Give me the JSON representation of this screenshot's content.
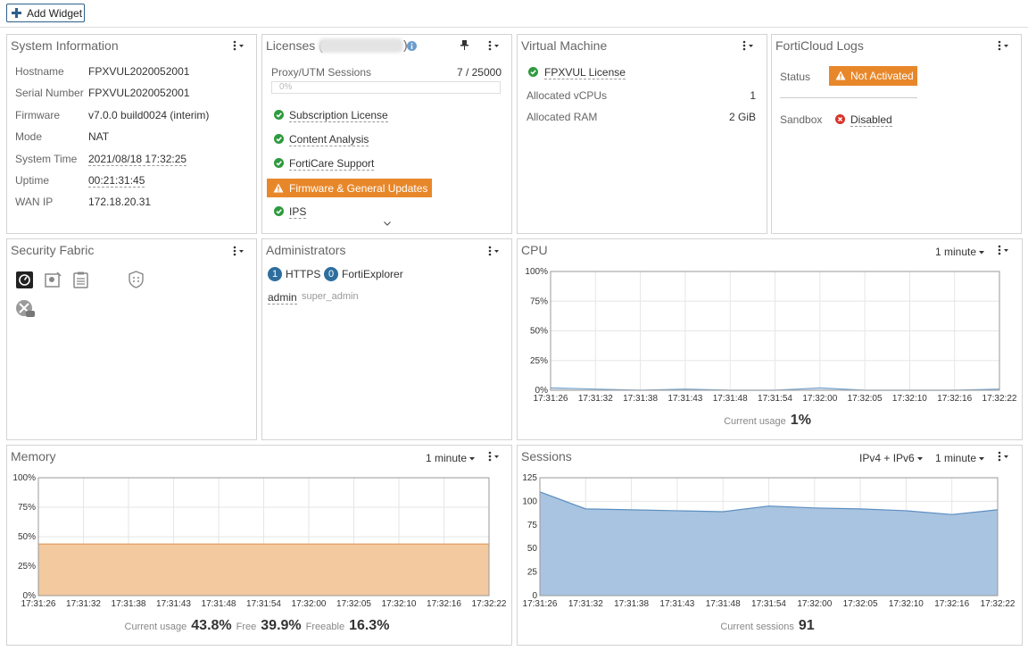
{
  "toolbar": {
    "add_widget": "Add Widget"
  },
  "system_information": {
    "title": "System Information",
    "rows": [
      {
        "label": "Hostname",
        "value": "FPXVUL2020052001"
      },
      {
        "label": "Serial Number",
        "value": "FPXVUL2020052001"
      },
      {
        "label": "Firmware",
        "value": "v7.0.0 build0024 (interim)"
      },
      {
        "label": "Mode",
        "value": "NAT"
      },
      {
        "label": "System Time",
        "value": "2021/08/18 17:32:25"
      },
      {
        "label": "Uptime",
        "value": "00:21:31:45"
      },
      {
        "label": "WAN IP",
        "value": "172.18.20.31"
      }
    ]
  },
  "licenses": {
    "title": "Licenses (",
    "title_end": ")",
    "sessions_label": "Proxy/UTM Sessions",
    "sessions_value": "7 / 25000",
    "sessions_bar": "0%",
    "items": [
      {
        "label": "Subscription License",
        "status": "ok"
      },
      {
        "label": "Content Analysis",
        "status": "ok"
      },
      {
        "label": "FortiCare Support",
        "status": "ok"
      },
      {
        "label": "Firmware & General Updates",
        "status": "warning"
      },
      {
        "label": "IPS",
        "status": "ok"
      }
    ]
  },
  "virtual_machine": {
    "title": "Virtual Machine",
    "license": "FPXVUL License",
    "rows": [
      {
        "label": "Allocated vCPUs",
        "value": "1"
      },
      {
        "label": "Allocated RAM",
        "value": "2 GiB"
      }
    ]
  },
  "forticloud_logs": {
    "title": "FortiCloud Logs",
    "status_label": "Status",
    "status": "Not Activated",
    "sandbox_label": "Sandbox",
    "sandbox": "Disabled"
  },
  "security_fabric": {
    "title": "Security Fabric"
  },
  "administrators": {
    "title": "Administrators",
    "sessions": [
      {
        "count": 1,
        "name": "HTTPS"
      },
      {
        "count": 0,
        "name": "FortiExplorer"
      }
    ],
    "user": "admin",
    "role": "super_admin"
  },
  "chart_data": [
    {
      "type": "area",
      "title": "CPU",
      "controls": [
        "1 minute"
      ],
      "color": "#7aa6cf",
      "fill": "#dde8f3",
      "categories": [
        "17:31:26",
        "17:31:32",
        "17:31:38",
        "17:31:43",
        "17:31:48",
        "17:31:54",
        "17:32:00",
        "17:32:05",
        "17:32:10",
        "17:32:16",
        "17:32:22"
      ],
      "values": [
        2,
        1,
        0,
        1,
        0,
        0,
        2,
        0,
        0,
        0,
        1
      ],
      "ylim": [
        0,
        100
      ],
      "yticks": [
        {
          "value": 0,
          "label": "0%"
        },
        {
          "value": 25,
          "label": "25%"
        },
        {
          "value": 50,
          "label": "50%"
        },
        {
          "value": 75,
          "label": "75%"
        },
        {
          "value": 100,
          "label": "100%"
        }
      ],
      "grid": true,
      "summary": [
        {
          "label": "Current usage",
          "value": "1%"
        }
      ]
    },
    {
      "type": "area",
      "title": "Memory",
      "controls": [
        "1 minute"
      ],
      "color": "#e0975a",
      "fill": "#f3c9a0",
      "categories": [
        "17:31:26",
        "17:31:32",
        "17:31:38",
        "17:31:43",
        "17:31:48",
        "17:31:54",
        "17:32:00",
        "17:32:05",
        "17:32:10",
        "17:32:16",
        "17:32:22"
      ],
      "values": [
        43.8,
        43.8,
        43.8,
        43.8,
        43.8,
        43.8,
        43.8,
        43.8,
        43.8,
        43.8,
        43.8
      ],
      "ylim": [
        0,
        100
      ],
      "yticks": [
        {
          "value": 0,
          "label": "0%"
        },
        {
          "value": 25,
          "label": "25%"
        },
        {
          "value": 50,
          "label": "50%"
        },
        {
          "value": 75,
          "label": "75%"
        },
        {
          "value": 100,
          "label": "100%"
        }
      ],
      "grid": true,
      "summary": [
        {
          "label": "Current usage",
          "value": "43.8%"
        },
        {
          "label": "Free",
          "value": "39.9%"
        },
        {
          "label": "Freeable",
          "value": "16.3%"
        }
      ]
    },
    {
      "type": "area",
      "title": "Sessions",
      "controls": [
        "IPv4 + IPv6",
        "1 minute"
      ],
      "color": "#5b8ec2",
      "fill": "#a9c4e0",
      "categories": [
        "17:31:26",
        "17:31:32",
        "17:31:38",
        "17:31:43",
        "17:31:48",
        "17:31:54",
        "17:32:00",
        "17:32:05",
        "17:32:10",
        "17:32:16",
        "17:32:22"
      ],
      "values": [
        110,
        92,
        91,
        90,
        89,
        95,
        93,
        92,
        90,
        86,
        91
      ],
      "ylim": [
        0,
        125
      ],
      "yticks": [
        0,
        25,
        50,
        75,
        100,
        125
      ],
      "grid": true,
      "summary": [
        {
          "label": "Current sessions",
          "value": "91"
        }
      ]
    }
  ]
}
